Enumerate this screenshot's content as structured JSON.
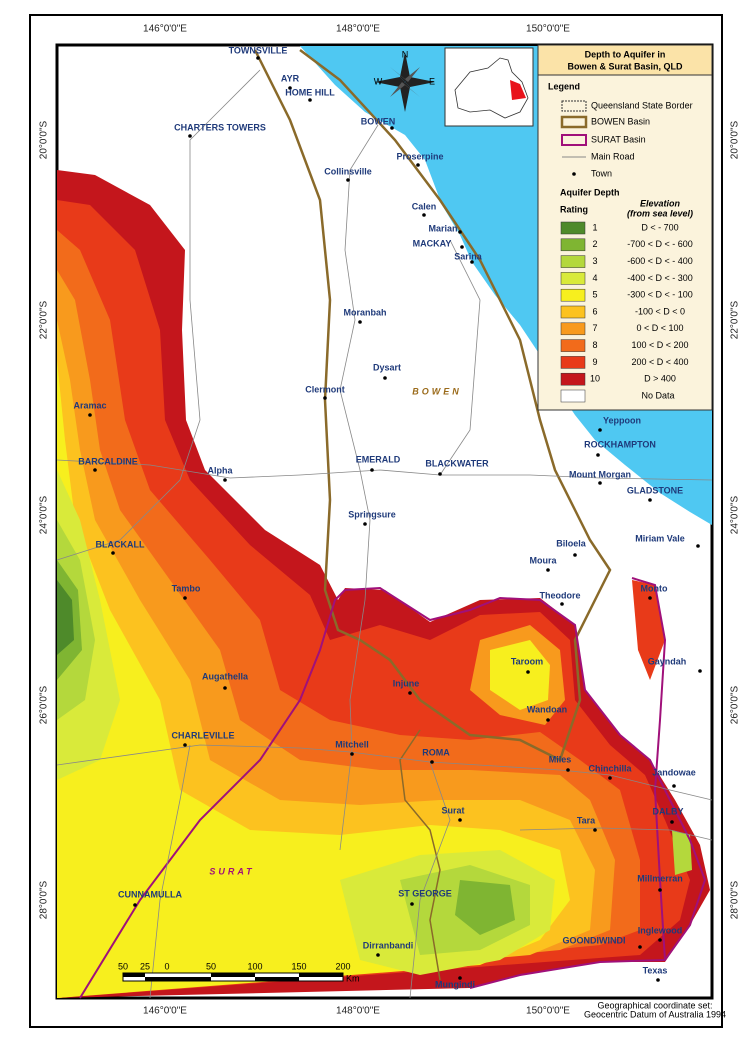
{
  "title": [
    "Depth to Aquifer in",
    "Bowen & Surat Basin, QLD"
  ],
  "longitude_labels": [
    "146°0'0\"E",
    "148°0'0\"E",
    "150°0'0\"E"
  ],
  "latitude_labels": [
    "20°0'0\"S",
    "22°0'0\"S",
    "24°0'0\"S",
    "26°0'0\"S",
    "28°0'0\"S"
  ],
  "compass": [
    "N",
    "W",
    "E"
  ],
  "legend": {
    "heading": "Legend",
    "items": [
      "Queensland State Border",
      "BOWEN Basin",
      "SURAT Basin",
      "Main Road",
      "Town"
    ],
    "depth_heading": "Aquifer Depth",
    "rating_heading": "Rating",
    "elevation_heading": "Elevation",
    "elevation_sub": "(from sea level)",
    "ratings": [
      {
        "rating": "1",
        "range": "D < - 700",
        "color": "#4e8a2a"
      },
      {
        "rating": "2",
        "range": "-700 < D < - 600",
        "color": "#7fb532"
      },
      {
        "rating": "3",
        "range": "-600 < D < - 400",
        "color": "#b4d83c"
      },
      {
        "rating": "4",
        "range": "-400 < D < - 300",
        "color": "#d9ea3a"
      },
      {
        "rating": "5",
        "range": "-300 < D < - 100",
        "color": "#f7ef1e"
      },
      {
        "rating": "6",
        "range": "-100 < D < 0",
        "color": "#fcc21f"
      },
      {
        "rating": "7",
        "range": "0 < D < 100",
        "color": "#f89a1d"
      },
      {
        "rating": "8",
        "range": "100 < D < 200",
        "color": "#f26b1b"
      },
      {
        "rating": "9",
        "range": "200 < D < 400",
        "color": "#e83a19"
      },
      {
        "rating": "10",
        "range": "D > 400",
        "color": "#c4161c"
      }
    ],
    "no_data": "No Data"
  },
  "towns": [
    "TOWNSVILLE",
    "AYR",
    "HOME HILL",
    "CHARTERS TOWERS",
    "BOWEN",
    "Proserpine",
    "Collinsville",
    "Calen",
    "Marian",
    "MACKAY",
    "Sarina",
    "Moranbah",
    "Dysart",
    "Clermont",
    "Aramac",
    "Yeppoon",
    "ROCKHAMPTON",
    "BARCALDINE",
    "Alpha",
    "EMERALD",
    "BLACKWATER",
    "Mount Morgan",
    "GLADSTONE",
    "Springsure",
    "Miriam Vale",
    "BLACKALL",
    "Biloela",
    "Moura",
    "Theodore",
    "Monto",
    "Tambo",
    "Taroom",
    "Gayndah",
    "Augathella",
    "Injune",
    "Wandoan",
    "CHARLEVILLE",
    "Mitchell",
    "ROMA",
    "Miles",
    "Chinchilla",
    "Jandowae",
    "DALBY",
    "Surat",
    "Tara",
    "Millmerran",
    "CUNNAMULLA",
    "ST GEORGE",
    "Inglewood",
    "GOONDIWINDI",
    "Dirranbandi",
    "Texas",
    "Mungindi"
  ],
  "region_labels": [
    "BOWEN",
    "SURAT"
  ],
  "scale_bar": {
    "ticks": [
      "50",
      "25",
      "0",
      "50",
      "100",
      "150",
      "200"
    ],
    "unit": "Km"
  },
  "footer": [
    "Geographical coordinate set:",
    "Geocentric Datum of Australia 1994"
  ]
}
